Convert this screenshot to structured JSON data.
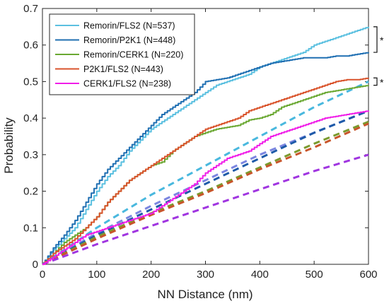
{
  "chart_data": {
    "type": "line",
    "title": "",
    "xlabel": "NN Distance (nm)",
    "ylabel": "Probability",
    "xlim": [
      0,
      600
    ],
    "ylim": [
      0,
      0.7
    ],
    "xticks": [
      "0",
      "100",
      "200",
      "300",
      "400",
      "500",
      "600"
    ],
    "yticks": [
      "0",
      "0.1",
      "0.2",
      "0.3",
      "0.4",
      "0.5",
      "0.6",
      "0.7"
    ],
    "grid": false,
    "legend_position": "top-left",
    "series": [
      {
        "name": "Remorin/FLS2 (N=537)",
        "color": "#5bc0e0",
        "style": "solid",
        "x": [
          0,
          20,
          40,
          60,
          80,
          100,
          120,
          140,
          160,
          180,
          200,
          220,
          240,
          260,
          280,
          300,
          320,
          340,
          360,
          380,
          400,
          420,
          440,
          460,
          480,
          500,
          520,
          540,
          560,
          580,
          600
        ],
        "y": [
          0,
          0.04,
          0.07,
          0.1,
          0.15,
          0.2,
          0.24,
          0.27,
          0.31,
          0.34,
          0.37,
          0.39,
          0.41,
          0.43,
          0.45,
          0.47,
          0.49,
          0.5,
          0.51,
          0.52,
          0.54,
          0.55,
          0.56,
          0.57,
          0.58,
          0.6,
          0.61,
          0.62,
          0.63,
          0.64,
          0.65
        ]
      },
      {
        "name": "Remorin/P2K1 (N=448)",
        "color": "#1f6fb2",
        "style": "solid",
        "x": [
          0,
          20,
          40,
          60,
          80,
          100,
          120,
          140,
          160,
          180,
          200,
          220,
          240,
          260,
          280,
          300,
          320,
          340,
          360,
          380,
          400,
          420,
          440,
          460,
          480,
          500,
          520,
          540,
          560,
          580,
          600
        ],
        "y": [
          0,
          0.045,
          0.08,
          0.12,
          0.17,
          0.22,
          0.26,
          0.29,
          0.32,
          0.35,
          0.38,
          0.41,
          0.43,
          0.45,
          0.47,
          0.5,
          0.505,
          0.51,
          0.52,
          0.53,
          0.54,
          0.55,
          0.555,
          0.56,
          0.565,
          0.565,
          0.565,
          0.57,
          0.57,
          0.575,
          0.58
        ]
      },
      {
        "name": "Remorin/CERK1 (N=220)",
        "color": "#6aa832",
        "style": "solid",
        "x": [
          0,
          20,
          40,
          60,
          80,
          100,
          120,
          140,
          160,
          180,
          200,
          220,
          240,
          260,
          280,
          300,
          320,
          340,
          360,
          380,
          400,
          420,
          440,
          460,
          480,
          500,
          520,
          540,
          560,
          580,
          600
        ],
        "y": [
          0,
          0.03,
          0.06,
          0.08,
          0.1,
          0.13,
          0.17,
          0.2,
          0.23,
          0.25,
          0.27,
          0.28,
          0.31,
          0.33,
          0.35,
          0.36,
          0.37,
          0.375,
          0.38,
          0.395,
          0.4,
          0.41,
          0.43,
          0.44,
          0.45,
          0.46,
          0.47,
          0.475,
          0.48,
          0.485,
          0.49
        ]
      },
      {
        "name": "P2K1/FLS2 (N=443)",
        "color": "#d9532b",
        "style": "solid",
        "x": [
          0,
          20,
          40,
          60,
          80,
          100,
          120,
          140,
          160,
          180,
          200,
          220,
          240,
          260,
          280,
          300,
          320,
          340,
          360,
          380,
          400,
          420,
          440,
          460,
          480,
          500,
          520,
          540,
          560,
          580,
          600
        ],
        "y": [
          0,
          0.03,
          0.05,
          0.07,
          0.1,
          0.13,
          0.17,
          0.2,
          0.23,
          0.25,
          0.27,
          0.29,
          0.31,
          0.33,
          0.35,
          0.37,
          0.38,
          0.39,
          0.4,
          0.42,
          0.43,
          0.44,
          0.45,
          0.46,
          0.47,
          0.48,
          0.49,
          0.5,
          0.505,
          0.505,
          0.51
        ]
      },
      {
        "name": "CERK1/FLS2 (N=238)",
        "color": "#f01de8",
        "style": "solid",
        "x": [
          0,
          20,
          40,
          60,
          80,
          100,
          120,
          140,
          160,
          180,
          200,
          220,
          240,
          260,
          280,
          300,
          320,
          340,
          360,
          380,
          400,
          420,
          440,
          460,
          480,
          500,
          520,
          540,
          560,
          580,
          600
        ],
        "y": [
          0,
          0.02,
          0.04,
          0.06,
          0.08,
          0.09,
          0.1,
          0.11,
          0.12,
          0.13,
          0.14,
          0.16,
          0.18,
          0.2,
          0.22,
          0.25,
          0.27,
          0.29,
          0.3,
          0.31,
          0.33,
          0.35,
          0.36,
          0.37,
          0.38,
          0.39,
          0.4,
          0.405,
          0.41,
          0.415,
          0.42
        ]
      },
      {
        "name": "",
        "color": "#49b8de",
        "style": "dashed",
        "x": [
          0,
          100,
          200,
          300,
          400,
          500,
          600
        ],
        "y": [
          0,
          0.1,
          0.19,
          0.27,
          0.35,
          0.43,
          0.5
        ]
      },
      {
        "name": "",
        "color": "#7b86e0",
        "style": "dashed",
        "x": [
          0,
          100,
          200,
          300,
          400,
          500,
          600
        ],
        "y": [
          0,
          0.085,
          0.16,
          0.23,
          0.3,
          0.36,
          0.42
        ]
      },
      {
        "name": "",
        "color": "#1e5aa8",
        "style": "dashed",
        "x": [
          0,
          100,
          200,
          300,
          400,
          500,
          600
        ],
        "y": [
          0,
          0.08,
          0.15,
          0.22,
          0.29,
          0.36,
          0.42
        ]
      },
      {
        "name": "",
        "color": "#7a9a2e",
        "style": "dashed",
        "x": [
          0,
          100,
          200,
          300,
          400,
          500,
          600
        ],
        "y": [
          0,
          0.075,
          0.14,
          0.2,
          0.265,
          0.33,
          0.39
        ]
      },
      {
        "name": "",
        "color": "#c8552a",
        "style": "dashed",
        "x": [
          0,
          100,
          200,
          300,
          400,
          500,
          600
        ],
        "y": [
          0,
          0.07,
          0.135,
          0.195,
          0.26,
          0.32,
          0.385
        ]
      },
      {
        "name": "",
        "color": "#a035e0",
        "style": "dashed",
        "x": [
          0,
          100,
          200,
          300,
          400,
          500,
          600
        ],
        "y": [
          0,
          0.055,
          0.105,
          0.155,
          0.205,
          0.255,
          0.3
        ]
      }
    ],
    "annotations": [
      {
        "text": "*",
        "between": [
          0,
          1
        ],
        "at_x": 600
      },
      {
        "text": "*",
        "between": [
          3,
          2
        ],
        "at_x": 600
      }
    ]
  }
}
